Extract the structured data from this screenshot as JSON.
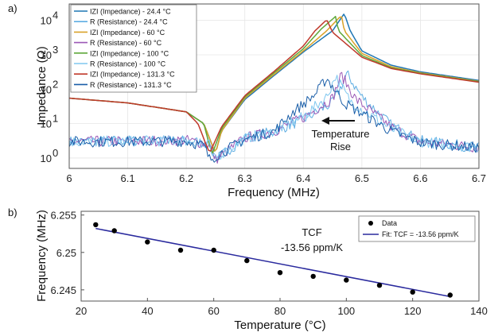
{
  "chart_data": [
    {
      "panel_label": "a)",
      "type": "line",
      "xlabel": "Frequency (MHz)",
      "ylabel": "Impedance (Ω)",
      "xlim": [
        6.0,
        6.7
      ],
      "ylim": [
        0.5,
        30000
      ],
      "yscale": "log",
      "grid": true,
      "x_ticks": [
        "6",
        "6.1",
        "6.2",
        "6.3",
        "6.4",
        "6.5",
        "6.6",
        "6.7"
      ],
      "y_ticks": [
        {
          "base": "10",
          "exp": "0"
        },
        {
          "base": "10",
          "exp": "1"
        },
        {
          "base": "10",
          "exp": "2"
        },
        {
          "base": "10",
          "exp": "3"
        },
        {
          "base": "10",
          "exp": "4"
        }
      ],
      "legend_position": "top-left",
      "annotation": {
        "line1": "Temperature",
        "line2": "Rise"
      },
      "series": [
        {
          "name": "IZI (Impedance) - 24.4 °C",
          "kind": "impedance",
          "color": "#1f77b4",
          "x": [
            6.0,
            6.1,
            6.2,
            6.23,
            6.245,
            6.25,
            6.26,
            6.3,
            6.35,
            6.4,
            6.45,
            6.47,
            6.48,
            6.5,
            6.55,
            6.6,
            6.7
          ],
          "y": [
            55,
            40,
            22,
            10,
            2.2,
            1.4,
            6,
            50,
            250,
            1200,
            5000,
            16000,
            5000,
            1300,
            500,
            320,
            180
          ]
        },
        {
          "name": "R (Resistance) - 24.4 °C",
          "kind": "resistance",
          "color": "#5dade2",
          "x": [
            6.0,
            6.1,
            6.2,
            6.24,
            6.25,
            6.3,
            6.35,
            6.4,
            6.45,
            6.475,
            6.5,
            6.55,
            6.6,
            6.7
          ],
          "y": [
            3,
            3.2,
            3.2,
            2.6,
            0.9,
            3.8,
            6,
            13,
            40,
            270,
            60,
            9,
            3.2,
            2
          ]
        },
        {
          "name": "IZI (Impedance) - 60 °C",
          "kind": "impedance",
          "color": "#d9a22a",
          "x": [
            6.0,
            6.1,
            6.2,
            6.23,
            6.245,
            6.25,
            6.26,
            6.3,
            6.35,
            6.4,
            6.44,
            6.465,
            6.47,
            6.5,
            6.55,
            6.6,
            6.7
          ],
          "y": [
            55,
            40,
            22,
            10,
            2.2,
            1.4,
            6,
            55,
            270,
            1300,
            5000,
            14000,
            5000,
            1100,
            450,
            300,
            170
          ]
        },
        {
          "name": "R (Resistance) - 60 °C",
          "kind": "resistance",
          "color": "#9b59b6",
          "x": [
            6.0,
            6.1,
            6.2,
            6.24,
            6.25,
            6.3,
            6.35,
            6.4,
            6.45,
            6.465,
            6.49,
            6.55,
            6.6,
            6.7
          ],
          "y": [
            3,
            3.1,
            3.3,
            2.5,
            0.9,
            3.8,
            6,
            15,
            55,
            260,
            50,
            8,
            3,
            2
          ]
        },
        {
          "name": "IZI (Impedance) - 100 °C",
          "kind": "impedance",
          "color": "#5ea83a",
          "x": [
            6.0,
            6.1,
            6.2,
            6.23,
            6.24,
            6.245,
            6.26,
            6.3,
            6.35,
            6.4,
            6.43,
            6.455,
            6.46,
            6.5,
            6.55,
            6.6,
            6.7
          ],
          "y": [
            55,
            40,
            22,
            10,
            2.2,
            1.4,
            7,
            60,
            300,
            1500,
            5500,
            13000,
            5000,
            950,
            420,
            290,
            165
          ]
        },
        {
          "name": "R (Resistance) - 100 °C",
          "kind": "resistance",
          "color": "#7fc7ef",
          "x": [
            6.0,
            6.1,
            6.2,
            6.24,
            6.245,
            6.3,
            6.35,
            6.4,
            6.44,
            6.455,
            6.48,
            6.55,
            6.6,
            6.7
          ],
          "y": [
            3,
            3.1,
            3.2,
            2.4,
            0.9,
            3.7,
            6,
            16,
            60,
            240,
            45,
            7,
            3,
            2
          ]
        },
        {
          "name": "IZI (Impedance) - 131.3 °C",
          "kind": "impedance",
          "color": "#c0392b",
          "x": [
            6.0,
            6.1,
            6.2,
            6.22,
            6.235,
            6.24,
            6.26,
            6.3,
            6.35,
            6.4,
            6.42,
            6.44,
            6.45,
            6.5,
            6.55,
            6.6,
            6.7
          ],
          "y": [
            55,
            40,
            22,
            10,
            2.2,
            1.4,
            8,
            65,
            330,
            1800,
            5000,
            10500,
            4500,
            850,
            400,
            280,
            160
          ]
        },
        {
          "name": "R (Resistance) - 131.3 °C",
          "kind": "resistance",
          "color": "#1a5ea8",
          "x": [
            6.0,
            6.1,
            6.2,
            6.23,
            6.24,
            6.3,
            6.35,
            6.38,
            6.42,
            6.44,
            6.47,
            6.55,
            6.6,
            6.7
          ],
          "y": [
            3,
            3,
            3.1,
            2.3,
            0.9,
            3.5,
            6,
            20,
            70,
            210,
            40,
            6,
            2.8,
            2
          ]
        }
      ]
    },
    {
      "panel_label": "b)",
      "type": "scatter",
      "xlabel": "Temperature (°C)",
      "ylabel": "Frequency (MHz)",
      "xlim": [
        20,
        140
      ],
      "ylim": [
        6.2435,
        6.2555
      ],
      "grid": false,
      "x_ticks": [
        "20",
        "40",
        "60",
        "80",
        "100",
        "120",
        "140"
      ],
      "y_ticks": [
        "6.245",
        "6.25",
        "6.255"
      ],
      "legend_position": "top-right",
      "annotation": {
        "line1": "TCF",
        "line2": "-13.56 ppm/K"
      },
      "series": [
        {
          "name": "Data",
          "color": "#000000",
          "x": [
            24.4,
            30,
            40,
            50,
            60,
            70,
            80,
            90,
            100,
            110,
            120,
            131.3
          ],
          "y": [
            6.2537,
            6.2529,
            6.2514,
            6.2503,
            6.2503,
            6.2489,
            6.2473,
            6.2468,
            6.2463,
            6.2456,
            6.2447,
            6.2443
          ]
        },
        {
          "name": "Fit: TCF = -13.56 ppm/K",
          "color": "#2a2a9e",
          "kind": "fit",
          "x": [
            24.4,
            131.3
          ],
          "y": [
            6.2532,
            6.2441
          ]
        }
      ]
    }
  ]
}
